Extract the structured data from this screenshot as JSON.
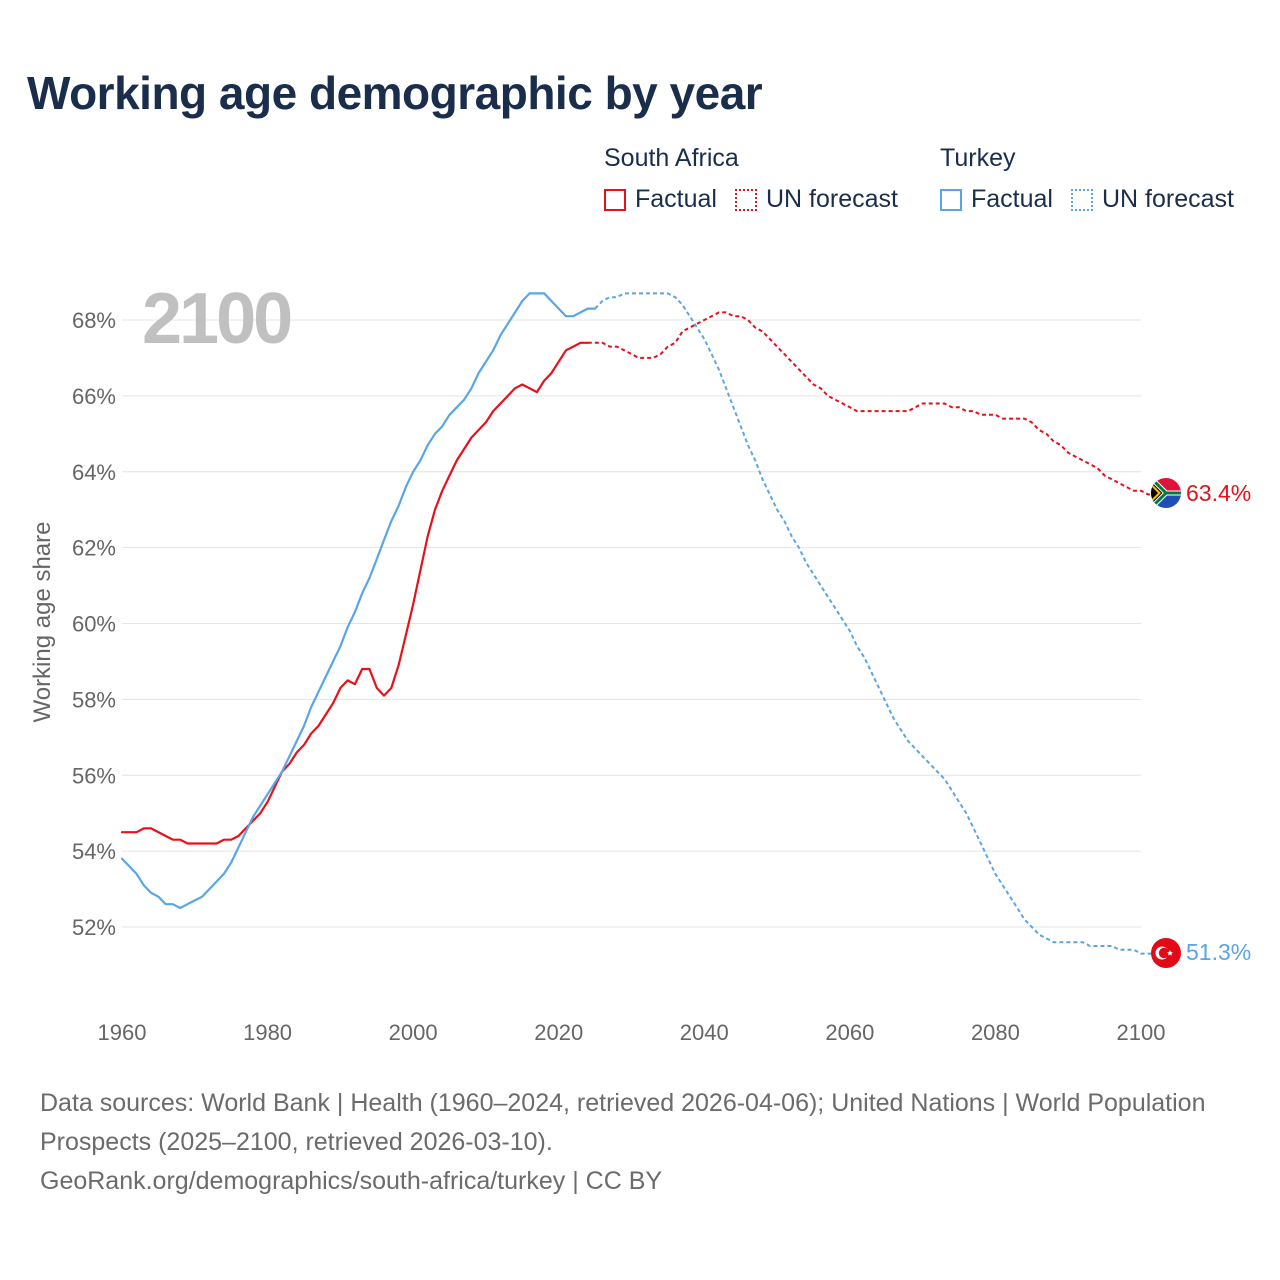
{
  "chart_data": {
    "type": "line",
    "title": "Working age demographic by year",
    "ylabel": "Working age share",
    "xlabel": "",
    "year_label": "2100",
    "xlim": [
      1960,
      2100
    ],
    "ylim": [
      50,
      69.5
    ],
    "x_ticks": [
      "1960",
      "1980",
      "2000",
      "2020",
      "2040",
      "2060",
      "2080",
      "2100"
    ],
    "y_ticks": [
      "52%",
      "54%",
      "56%",
      "58%",
      "60%",
      "62%",
      "64%",
      "66%",
      "68%"
    ],
    "legend": {
      "groups": [
        {
          "name": "South Africa",
          "factual_label": "Factual",
          "forecast_label": "UN forecast",
          "color": "#e8101a"
        },
        {
          "name": "Turkey",
          "factual_label": "Factual",
          "forecast_label": "UN forecast",
          "color": "#5aa5e6"
        }
      ]
    },
    "series": [
      {
        "name": "South Africa",
        "color": "#e8101a",
        "end_label": "63.4%",
        "factual": [
          [
            1960,
            54.5
          ],
          [
            1962,
            54.5
          ],
          [
            1963,
            54.6
          ],
          [
            1964,
            54.6
          ],
          [
            1966,
            54.4
          ],
          [
            1967,
            54.3
          ],
          [
            1968,
            54.3
          ],
          [
            1969,
            54.2
          ],
          [
            1971,
            54.2
          ],
          [
            1973,
            54.2
          ],
          [
            1974,
            54.3
          ],
          [
            1975,
            54.3
          ],
          [
            1976,
            54.4
          ],
          [
            1977,
            54.6
          ],
          [
            1978,
            54.8
          ],
          [
            1979,
            55.0
          ],
          [
            1980,
            55.3
          ],
          [
            1981,
            55.7
          ],
          [
            1982,
            56.1
          ],
          [
            1983,
            56.3
          ],
          [
            1984,
            56.6
          ],
          [
            1985,
            56.8
          ],
          [
            1986,
            57.1
          ],
          [
            1987,
            57.3
          ],
          [
            1988,
            57.6
          ],
          [
            1989,
            57.9
          ],
          [
            1990,
            58.3
          ],
          [
            1991,
            58.5
          ],
          [
            1992,
            58.4
          ],
          [
            1993,
            58.8
          ],
          [
            1994,
            58.8
          ],
          [
            1995,
            58.3
          ],
          [
            1996,
            58.1
          ],
          [
            1997,
            58.3
          ],
          [
            1998,
            58.9
          ],
          [
            1999,
            59.7
          ],
          [
            2000,
            60.5
          ],
          [
            2001,
            61.4
          ],
          [
            2002,
            62.3
          ],
          [
            2003,
            63.0
          ],
          [
            2004,
            63.5
          ],
          [
            2005,
            63.9
          ],
          [
            2006,
            64.3
          ],
          [
            2007,
            64.6
          ],
          [
            2008,
            64.9
          ],
          [
            2009,
            65.1
          ],
          [
            2010,
            65.3
          ],
          [
            2011,
            65.6
          ],
          [
            2012,
            65.8
          ],
          [
            2013,
            66.0
          ],
          [
            2014,
            66.2
          ],
          [
            2015,
            66.3
          ],
          [
            2016,
            66.2
          ],
          [
            2017,
            66.1
          ],
          [
            2018,
            66.4
          ],
          [
            2019,
            66.6
          ],
          [
            2020,
            66.9
          ],
          [
            2021,
            67.2
          ],
          [
            2022,
            67.3
          ],
          [
            2023,
            67.4
          ],
          [
            2024,
            67.4
          ]
        ],
        "forecast": [
          [
            2024,
            67.4
          ],
          [
            2025,
            67.4
          ],
          [
            2026,
            67.4
          ],
          [
            2027,
            67.3
          ],
          [
            2028,
            67.3
          ],
          [
            2029,
            67.2
          ],
          [
            2030,
            67.1
          ],
          [
            2031,
            67.0
          ],
          [
            2032,
            67.0
          ],
          [
            2033,
            67.0
          ],
          [
            2034,
            67.1
          ],
          [
            2035,
            67.3
          ],
          [
            2036,
            67.4
          ],
          [
            2037,
            67.7
          ],
          [
            2038,
            67.8
          ],
          [
            2039,
            67.9
          ],
          [
            2040,
            68.0
          ],
          [
            2041,
            68.1
          ],
          [
            2042,
            68.2
          ],
          [
            2043,
            68.2
          ],
          [
            2044,
            68.1
          ],
          [
            2045,
            68.1
          ],
          [
            2046,
            68.0
          ],
          [
            2047,
            67.8
          ],
          [
            2048,
            67.7
          ],
          [
            2049,
            67.5
          ],
          [
            2050,
            67.3
          ],
          [
            2051,
            67.1
          ],
          [
            2052,
            66.9
          ],
          [
            2053,
            66.7
          ],
          [
            2054,
            66.5
          ],
          [
            2055,
            66.3
          ],
          [
            2056,
            66.2
          ],
          [
            2057,
            66.0
          ],
          [
            2058,
            65.9
          ],
          [
            2059,
            65.8
          ],
          [
            2060,
            65.7
          ],
          [
            2061,
            65.6
          ],
          [
            2062,
            65.6
          ],
          [
            2064,
            65.6
          ],
          [
            2066,
            65.6
          ],
          [
            2068,
            65.6
          ],
          [
            2069,
            65.7
          ],
          [
            2070,
            65.8
          ],
          [
            2072,
            65.8
          ],
          [
            2073,
            65.8
          ],
          [
            2074,
            65.7
          ],
          [
            2075,
            65.7
          ],
          [
            2076,
            65.6
          ],
          [
            2077,
            65.6
          ],
          [
            2078,
            65.5
          ],
          [
            2079,
            65.5
          ],
          [
            2080,
            65.5
          ],
          [
            2081,
            65.4
          ],
          [
            2083,
            65.4
          ],
          [
            2084,
            65.4
          ],
          [
            2085,
            65.3
          ],
          [
            2086,
            65.1
          ],
          [
            2087,
            65.0
          ],
          [
            2088,
            64.8
          ],
          [
            2089,
            64.7
          ],
          [
            2090,
            64.5
          ],
          [
            2091,
            64.4
          ],
          [
            2092,
            64.3
          ],
          [
            2093,
            64.2
          ],
          [
            2094,
            64.1
          ],
          [
            2095,
            63.9
          ],
          [
            2096,
            63.8
          ],
          [
            2097,
            63.7
          ],
          [
            2098,
            63.6
          ],
          [
            2099,
            63.5
          ],
          [
            2100,
            63.5
          ],
          [
            2101,
            63.4
          ],
          [
            2102,
            63.4
          ]
        ]
      },
      {
        "name": "Turkey",
        "color": "#5aa5e6",
        "end_label": "51.3%",
        "factual": [
          [
            1960,
            53.8
          ],
          [
            1961,
            53.6
          ],
          [
            1962,
            53.4
          ],
          [
            1963,
            53.1
          ],
          [
            1964,
            52.9
          ],
          [
            1965,
            52.8
          ],
          [
            1966,
            52.6
          ],
          [
            1967,
            52.6
          ],
          [
            1968,
            52.5
          ],
          [
            1969,
            52.6
          ],
          [
            1970,
            52.7
          ],
          [
            1971,
            52.8
          ],
          [
            1972,
            53.0
          ],
          [
            1973,
            53.2
          ],
          [
            1974,
            53.4
          ],
          [
            1975,
            53.7
          ],
          [
            1976,
            54.1
          ],
          [
            1977,
            54.5
          ],
          [
            1978,
            54.9
          ],
          [
            1979,
            55.2
          ],
          [
            1980,
            55.5
          ],
          [
            1981,
            55.8
          ],
          [
            1982,
            56.1
          ],
          [
            1983,
            56.5
          ],
          [
            1984,
            56.9
          ],
          [
            1985,
            57.3
          ],
          [
            1986,
            57.8
          ],
          [
            1987,
            58.2
          ],
          [
            1988,
            58.6
          ],
          [
            1989,
            59.0
          ],
          [
            1990,
            59.4
          ],
          [
            1991,
            59.9
          ],
          [
            1992,
            60.3
          ],
          [
            1993,
            60.8
          ],
          [
            1994,
            61.2
          ],
          [
            1995,
            61.7
          ],
          [
            1996,
            62.2
          ],
          [
            1997,
            62.7
          ],
          [
            1998,
            63.1
          ],
          [
            1999,
            63.6
          ],
          [
            2000,
            64.0
          ],
          [
            2001,
            64.3
          ],
          [
            2002,
            64.7
          ],
          [
            2003,
            65.0
          ],
          [
            2004,
            65.2
          ],
          [
            2005,
            65.5
          ],
          [
            2006,
            65.7
          ],
          [
            2007,
            65.9
          ],
          [
            2008,
            66.2
          ],
          [
            2009,
            66.6
          ],
          [
            2010,
            66.9
          ],
          [
            2011,
            67.2
          ],
          [
            2012,
            67.6
          ],
          [
            2013,
            67.9
          ],
          [
            2014,
            68.2
          ],
          [
            2015,
            68.5
          ],
          [
            2016,
            68.7
          ],
          [
            2017,
            68.7
          ],
          [
            2018,
            68.7
          ],
          [
            2019,
            68.5
          ],
          [
            2020,
            68.3
          ],
          [
            2021,
            68.1
          ],
          [
            2022,
            68.1
          ],
          [
            2023,
            68.2
          ],
          [
            2024,
            68.3
          ],
          [
            2025,
            68.3
          ]
        ],
        "forecast": [
          [
            2025,
            68.3
          ],
          [
            2026,
            68.5
          ],
          [
            2027,
            68.6
          ],
          [
            2028,
            68.6
          ],
          [
            2029,
            68.7
          ],
          [
            2030,
            68.7
          ],
          [
            2032,
            68.7
          ],
          [
            2034,
            68.7
          ],
          [
            2035,
            68.7
          ],
          [
            2036,
            68.6
          ],
          [
            2037,
            68.4
          ],
          [
            2038,
            68.1
          ],
          [
            2039,
            67.8
          ],
          [
            2040,
            67.5
          ],
          [
            2041,
            67.1
          ],
          [
            2042,
            66.7
          ],
          [
            2043,
            66.2
          ],
          [
            2044,
            65.7
          ],
          [
            2045,
            65.2
          ],
          [
            2046,
            64.7
          ],
          [
            2047,
            64.3
          ],
          [
            2048,
            63.8
          ],
          [
            2049,
            63.4
          ],
          [
            2050,
            63.0
          ],
          [
            2051,
            62.7
          ],
          [
            2052,
            62.3
          ],
          [
            2053,
            62.0
          ],
          [
            2054,
            61.6
          ],
          [
            2055,
            61.3
          ],
          [
            2056,
            61.0
          ],
          [
            2057,
            60.7
          ],
          [
            2058,
            60.4
          ],
          [
            2059,
            60.1
          ],
          [
            2060,
            59.8
          ],
          [
            2061,
            59.4
          ],
          [
            2062,
            59.1
          ],
          [
            2063,
            58.7
          ],
          [
            2064,
            58.3
          ],
          [
            2065,
            57.9
          ],
          [
            2066,
            57.5
          ],
          [
            2067,
            57.2
          ],
          [
            2068,
            56.9
          ],
          [
            2069,
            56.7
          ],
          [
            2070,
            56.5
          ],
          [
            2071,
            56.3
          ],
          [
            2072,
            56.1
          ],
          [
            2073,
            55.9
          ],
          [
            2074,
            55.6
          ],
          [
            2075,
            55.3
          ],
          [
            2076,
            55.0
          ],
          [
            2077,
            54.6
          ],
          [
            2078,
            54.2
          ],
          [
            2079,
            53.8
          ],
          [
            2080,
            53.4
          ],
          [
            2081,
            53.1
          ],
          [
            2082,
            52.8
          ],
          [
            2083,
            52.5
          ],
          [
            2084,
            52.2
          ],
          [
            2085,
            52.0
          ],
          [
            2086,
            51.8
          ],
          [
            2087,
            51.7
          ],
          [
            2088,
            51.6
          ],
          [
            2089,
            51.6
          ],
          [
            2091,
            51.6
          ],
          [
            2092,
            51.6
          ],
          [
            2093,
            51.5
          ],
          [
            2095,
            51.5
          ],
          [
            2096,
            51.5
          ],
          [
            2097,
            51.4
          ],
          [
            2098,
            51.4
          ],
          [
            2099,
            51.4
          ],
          [
            2100,
            51.3
          ],
          [
            2101,
            51.3
          ],
          [
            2102,
            51.3
          ]
        ]
      }
    ]
  },
  "footer": {
    "line1": "Data sources: World Bank | Health (1960–2024, retrieved 2026-04-06); United Nations | World Population Prospects (2025–2100, retrieved 2026-03-10).",
    "line2": "GeoRank.org/demographics/south-africa/turkey | CC BY"
  }
}
